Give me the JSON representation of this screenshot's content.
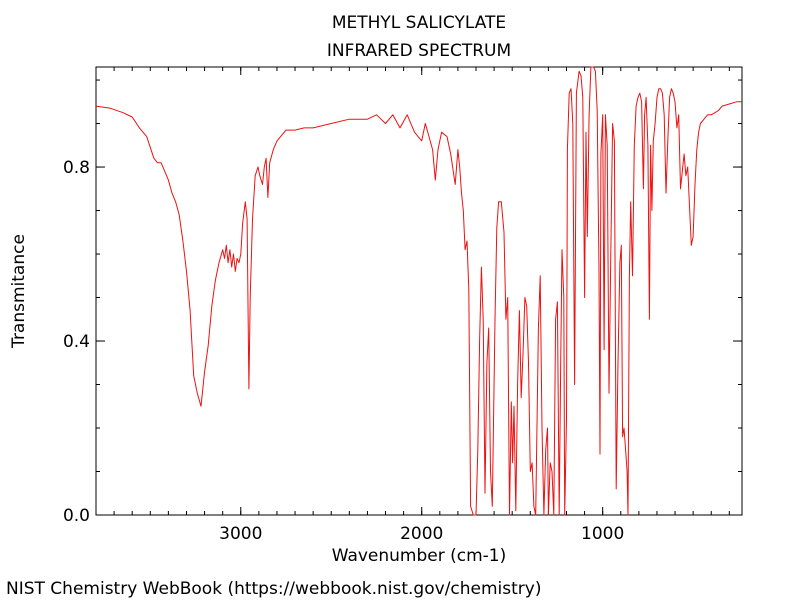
{
  "chart_data": {
    "type": "line",
    "title": "METHYL SALICYLATE",
    "subtitle": "INFRARED SPECTRUM",
    "xlabel": "Wavenumber (cm-1)",
    "ylabel": "Transmitance",
    "xlim": [
      3800,
      230
    ],
    "ylim": [
      0.0,
      1.03
    ],
    "x_ticks": [
      3000,
      2000,
      1000
    ],
    "x_tick_labels": [
      "3000",
      "2000",
      "1000"
    ],
    "y_ticks": [
      0.0,
      0.4,
      0.8
    ],
    "y_tick_labels": [
      "0.0",
      "0.4",
      "0.8"
    ],
    "x_minor_step": 100,
    "y_minor_step": 0.1,
    "grid": false,
    "line_color": "#ee1111",
    "series": [
      {
        "name": "Methyl salicylate IR",
        "points": [
          [
            3800,
            0.94
          ],
          [
            3720,
            0.935
          ],
          [
            3650,
            0.925
          ],
          [
            3600,
            0.915
          ],
          [
            3560,
            0.89
          ],
          [
            3520,
            0.87
          ],
          [
            3480,
            0.82
          ],
          [
            3460,
            0.81
          ],
          [
            3440,
            0.81
          ],
          [
            3420,
            0.79
          ],
          [
            3400,
            0.77
          ],
          [
            3380,
            0.74
          ],
          [
            3360,
            0.72
          ],
          [
            3340,
            0.69
          ],
          [
            3320,
            0.63
          ],
          [
            3300,
            0.56
          ],
          [
            3280,
            0.47
          ],
          [
            3260,
            0.32
          ],
          [
            3240,
            0.28
          ],
          [
            3220,
            0.25
          ],
          [
            3200,
            0.33
          ],
          [
            3180,
            0.39
          ],
          [
            3160,
            0.48
          ],
          [
            3140,
            0.54
          ],
          [
            3120,
            0.58
          ],
          [
            3100,
            0.61
          ],
          [
            3090,
            0.59
          ],
          [
            3080,
            0.62
          ],
          [
            3070,
            0.58
          ],
          [
            3060,
            0.61
          ],
          [
            3050,
            0.57
          ],
          [
            3040,
            0.6
          ],
          [
            3030,
            0.56
          ],
          [
            3020,
            0.59
          ],
          [
            3010,
            0.58
          ],
          [
            3000,
            0.6
          ],
          [
            2990,
            0.67
          ],
          [
            2975,
            0.72
          ],
          [
            2965,
            0.68
          ],
          [
            2955,
            0.29
          ],
          [
            2948,
            0.5
          ],
          [
            2935,
            0.68
          ],
          [
            2920,
            0.78
          ],
          [
            2905,
            0.8
          ],
          [
            2895,
            0.78
          ],
          [
            2880,
            0.76
          ],
          [
            2870,
            0.8
          ],
          [
            2860,
            0.82
          ],
          [
            2850,
            0.73
          ],
          [
            2840,
            0.81
          ],
          [
            2820,
            0.84
          ],
          [
            2800,
            0.86
          ],
          [
            2750,
            0.885
          ],
          [
            2700,
            0.885
          ],
          [
            2650,
            0.89
          ],
          [
            2600,
            0.89
          ],
          [
            2500,
            0.9
          ],
          [
            2400,
            0.91
          ],
          [
            2300,
            0.91
          ],
          [
            2250,
            0.92
          ],
          [
            2200,
            0.9
          ],
          [
            2160,
            0.92
          ],
          [
            2120,
            0.89
          ],
          [
            2080,
            0.92
          ],
          [
            2040,
            0.88
          ],
          [
            2000,
            0.86
          ],
          [
            1980,
            0.9
          ],
          [
            1960,
            0.87
          ],
          [
            1940,
            0.84
          ],
          [
            1925,
            0.77
          ],
          [
            1910,
            0.84
          ],
          [
            1890,
            0.88
          ],
          [
            1860,
            0.87
          ],
          [
            1840,
            0.83
          ],
          [
            1815,
            0.76
          ],
          [
            1800,
            0.84
          ],
          [
            1790,
            0.8
          ],
          [
            1780,
            0.74
          ],
          [
            1770,
            0.7
          ],
          [
            1760,
            0.61
          ],
          [
            1750,
            0.63
          ],
          [
            1740,
            0.52
          ],
          [
            1730,
            0.02
          ],
          [
            1715,
            -0.01
          ],
          [
            1700,
            0.0
          ],
          [
            1690,
            0.15
          ],
          [
            1680,
            0.4
          ],
          [
            1670,
            0.57
          ],
          [
            1660,
            0.45
          ],
          [
            1650,
            0.05
          ],
          [
            1640,
            0.35
          ],
          [
            1630,
            0.43
          ],
          [
            1620,
            0.1
          ],
          [
            1610,
            0.02
          ],
          [
            1595,
            0.45
          ],
          [
            1585,
            0.66
          ],
          [
            1575,
            0.72
          ],
          [
            1560,
            0.72
          ],
          [
            1545,
            0.65
          ],
          [
            1535,
            0.45
          ],
          [
            1525,
            0.5
          ],
          [
            1515,
            0.0
          ],
          [
            1505,
            0.26
          ],
          [
            1498,
            0.12
          ],
          [
            1490,
            0.25
          ],
          [
            1480,
            0.01
          ],
          [
            1470,
            0.3
          ],
          [
            1460,
            0.47
          ],
          [
            1450,
            0.27
          ],
          [
            1440,
            0.37
          ],
          [
            1430,
            0.5
          ],
          [
            1420,
            0.48
          ],
          [
            1410,
            0.35
          ],
          [
            1400,
            0.1
          ],
          [
            1390,
            0.12
          ],
          [
            1380,
            0.02
          ],
          [
            1370,
            0.0
          ],
          [
            1355,
            0.43
          ],
          [
            1345,
            0.55
          ],
          [
            1335,
            0.2
          ],
          [
            1325,
            0.0
          ],
          [
            1315,
            0.15
          ],
          [
            1305,
            0.2
          ],
          [
            1300,
            0.0
          ],
          [
            1290,
            0.12
          ],
          [
            1280,
            0.1
          ],
          [
            1270,
            0.0
          ],
          [
            1260,
            0.45
          ],
          [
            1250,
            0.49
          ],
          [
            1240,
            0.0
          ],
          [
            1232,
            0.35
          ],
          [
            1225,
            0.61
          ],
          [
            1215,
            0.5
          ],
          [
            1210,
            0.0
          ],
          [
            1200,
            0.22
          ],
          [
            1195,
            0.84
          ],
          [
            1185,
            0.97
          ],
          [
            1175,
            0.98
          ],
          [
            1165,
            0.9
          ],
          [
            1155,
            0.3
          ],
          [
            1145,
            0.97
          ],
          [
            1130,
            1.02
          ],
          [
            1120,
            1.01
          ],
          [
            1110,
            0.96
          ],
          [
            1100,
            0.5
          ],
          [
            1092,
            0.88
          ],
          [
            1085,
            0.64
          ],
          [
            1075,
            0.92
          ],
          [
            1065,
            1.03
          ],
          [
            1050,
            1.03
          ],
          [
            1040,
            1.02
          ],
          [
            1030,
            0.93
          ],
          [
            1020,
            0.56
          ],
          [
            1015,
            0.14
          ],
          [
            1010,
            0.83
          ],
          [
            1000,
            0.92
          ],
          [
            992,
            0.38
          ],
          [
            985,
            0.92
          ],
          [
            975,
            0.85
          ],
          [
            965,
            0.28
          ],
          [
            955,
            0.6
          ],
          [
            945,
            0.9
          ],
          [
            935,
            0.86
          ],
          [
            925,
            0.06
          ],
          [
            915,
            0.35
          ],
          [
            905,
            0.58
          ],
          [
            897,
            0.62
          ],
          [
            890,
            0.18
          ],
          [
            882,
            0.2
          ],
          [
            875,
            0.16
          ],
          [
            865,
            0.1
          ],
          [
            860,
            0.0
          ],
          [
            852,
            0.55
          ],
          [
            845,
            0.72
          ],
          [
            835,
            0.55
          ],
          [
            825,
            0.85
          ],
          [
            815,
            0.94
          ],
          [
            805,
            0.96
          ],
          [
            795,
            0.97
          ],
          [
            785,
            0.95
          ],
          [
            775,
            0.75
          ],
          [
            768,
            0.92
          ],
          [
            760,
            0.96
          ],
          [
            750,
            0.85
          ],
          [
            742,
            0.45
          ],
          [
            735,
            0.85
          ],
          [
            728,
            0.7
          ],
          [
            720,
            0.86
          ],
          [
            710,
            0.9
          ],
          [
            700,
            0.96
          ],
          [
            690,
            0.98
          ],
          [
            680,
            0.98
          ],
          [
            670,
            0.97
          ],
          [
            660,
            0.92
          ],
          [
            650,
            0.74
          ],
          [
            640,
            0.86
          ],
          [
            630,
            0.96
          ],
          [
            620,
            0.98
          ],
          [
            610,
            0.97
          ],
          [
            600,
            0.95
          ],
          [
            590,
            0.89
          ],
          [
            580,
            0.92
          ],
          [
            570,
            0.75
          ],
          [
            560,
            0.79
          ],
          [
            550,
            0.83
          ],
          [
            540,
            0.78
          ],
          [
            530,
            0.8
          ],
          [
            520,
            0.71
          ],
          [
            510,
            0.62
          ],
          [
            500,
            0.64
          ],
          [
            490,
            0.76
          ],
          [
            480,
            0.84
          ],
          [
            470,
            0.88
          ],
          [
            460,
            0.9
          ],
          [
            440,
            0.91
          ],
          [
            420,
            0.92
          ],
          [
            400,
            0.92
          ],
          [
            380,
            0.925
          ],
          [
            360,
            0.93
          ],
          [
            340,
            0.94
          ],
          [
            300,
            0.945
          ],
          [
            260,
            0.95
          ],
          [
            230,
            0.95
          ]
        ]
      }
    ]
  },
  "footer": {
    "credit": "NIST Chemistry WebBook (https://webbook.nist.gov/chemistry)"
  }
}
